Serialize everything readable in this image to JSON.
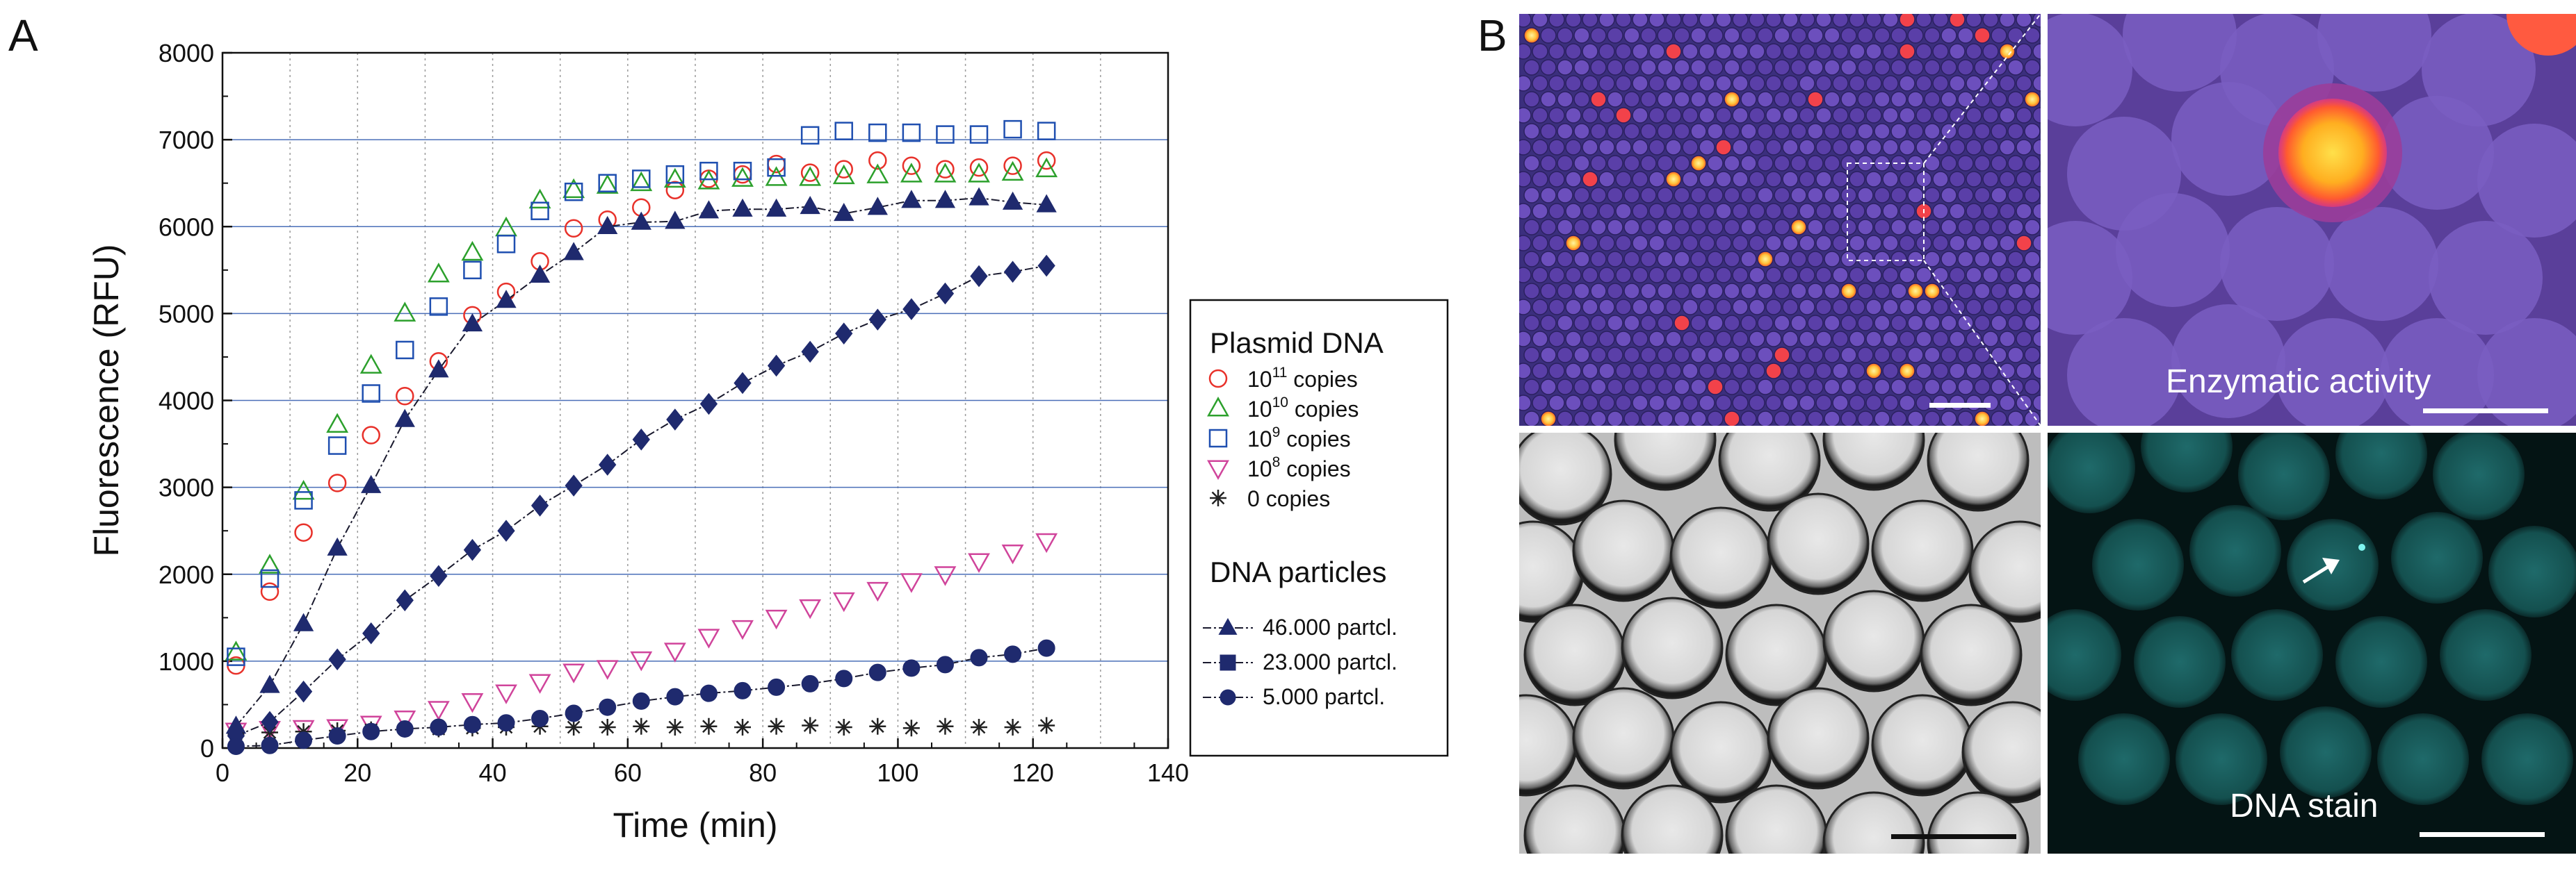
{
  "panels": {
    "a_label": "A",
    "b_label": "B"
  },
  "chart_data": {
    "type": "scatter",
    "xlabel": "Time (min)",
    "ylabel": "Fluorescence (RFU)",
    "xlim": [
      0,
      140
    ],
    "ylim": [
      0,
      8000
    ],
    "xticks": [
      0,
      20,
      40,
      60,
      80,
      100,
      120,
      140
    ],
    "yticks": [
      0,
      1000,
      2000,
      3000,
      4000,
      5000,
      6000,
      7000,
      8000
    ],
    "grid": "horizontal lines every 1000, vertical dotted lines every 10",
    "legend_position": "right",
    "legend": {
      "group1_title": "Plasmid DNA",
      "group2_title": "DNA particles",
      "entries": [
        {
          "base": "10",
          "exp": "11",
          "suffix": " copies"
        },
        {
          "base": "10",
          "exp": "10",
          "suffix": " copies"
        },
        {
          "base": "10",
          "exp": "9",
          "suffix": " copies"
        },
        {
          "base": "10",
          "exp": "8",
          "suffix": " copies"
        },
        {
          "base": "",
          "exp": "",
          "suffix": "0 copies"
        },
        {
          "base": "",
          "exp": "",
          "suffix": "46.000 partcl."
        },
        {
          "base": "",
          "exp": "",
          "suffix": "23.000 partcl."
        },
        {
          "base": "",
          "exp": "",
          "suffix": "5.000 partcl."
        }
      ]
    },
    "x": [
      2,
      7,
      12,
      17,
      22,
      27,
      32,
      37,
      42,
      47,
      52,
      57,
      62,
      67,
      72,
      77,
      82,
      87,
      92,
      97,
      102,
      107,
      112,
      117,
      122
    ],
    "series": [
      {
        "name": "10^11 copies",
        "marker": "circle-open",
        "color": "#e8312a",
        "values": [
          950,
          1800,
          2480,
          3050,
          3600,
          4050,
          4450,
          4980,
          5250,
          5600,
          5980,
          6080,
          6220,
          6420,
          6550,
          6600,
          6720,
          6620,
          6660,
          6760,
          6700,
          6660,
          6680,
          6700,
          6760
        ]
      },
      {
        "name": "10^10 copies",
        "marker": "triangle-open",
        "color": "#2ca02c",
        "values": [
          1100,
          2100,
          2950,
          3720,
          4400,
          5000,
          5450,
          5700,
          5980,
          6300,
          6420,
          6470,
          6500,
          6540,
          6520,
          6550,
          6560,
          6560,
          6580,
          6590,
          6600,
          6600,
          6600,
          6620,
          6660
        ]
      },
      {
        "name": "10^9 copies",
        "marker": "square-open",
        "color": "#1f4fb0",
        "values": [
          1050,
          1950,
          2850,
          3480,
          4080,
          4580,
          5080,
          5500,
          5800,
          6180,
          6400,
          6500,
          6550,
          6600,
          6640,
          6640,
          6680,
          7050,
          7100,
          7080,
          7080,
          7060,
          7060,
          7120,
          7100
        ]
      },
      {
        "name": "10^8 copies",
        "marker": "triangle-down-open",
        "color": "#d0449b",
        "values": [
          200,
          220,
          230,
          240,
          280,
          340,
          450,
          540,
          640,
          760,
          880,
          920,
          1020,
          1120,
          1280,
          1380,
          1500,
          1620,
          1700,
          1820,
          1920,
          2000,
          2150,
          2250,
          2380
        ]
      },
      {
        "name": "0 copies",
        "marker": "asterisk",
        "color": "#222222",
        "values": [
          160,
          180,
          190,
          200,
          210,
          220,
          220,
          230,
          240,
          250,
          240,
          240,
          250,
          240,
          250,
          240,
          250,
          260,
          240,
          250,
          230,
          250,
          240,
          240,
          260
        ]
      },
      {
        "name": "46.000 partcl.",
        "marker": "triangle-filled",
        "color": "#1f2a6e",
        "line": true,
        "values": [
          250,
          720,
          1430,
          2300,
          3020,
          3780,
          4350,
          4880,
          5150,
          5440,
          5700,
          6000,
          6050,
          6060,
          6180,
          6200,
          6200,
          6230,
          6150,
          6220,
          6300,
          6300,
          6330,
          6280,
          6250
        ]
      },
      {
        "name": "23.000 partcl.",
        "marker": "diamond-filled",
        "color": "#1f2a6e",
        "line": true,
        "values": [
          140,
          300,
          650,
          1020,
          1320,
          1700,
          1980,
          2280,
          2500,
          2790,
          3020,
          3260,
          3550,
          3780,
          3960,
          4200,
          4400,
          4560,
          4770,
          4930,
          5050,
          5230,
          5430,
          5480,
          5550
        ]
      },
      {
        "name": "5.000 partcl.",
        "marker": "circle-filled",
        "color": "#1f2a6e",
        "line": true,
        "values": [
          20,
          30,
          90,
          140,
          190,
          220,
          240,
          270,
          290,
          340,
          400,
          470,
          540,
          590,
          630,
          660,
          700,
          740,
          800,
          870,
          920,
          960,
          1040,
          1080,
          1150
        ]
      }
    ]
  },
  "images": {
    "top_left": {
      "description_colors": [
        "#3a2a7a",
        "#6a4ab0",
        "#ff3040",
        "#ffd34a"
      ]
    },
    "top_right": {
      "caption": "Enzymatic activity"
    },
    "bottom_left": {},
    "bottom_right": {
      "caption": "DNA stain"
    }
  }
}
